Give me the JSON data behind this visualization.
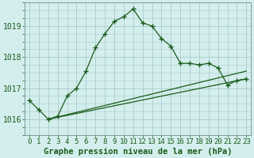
{
  "xlabel": "Graphe pression niveau de la mer (hPa)",
  "bg_color": "#d4eeed",
  "line_color": "#1a5c1a",
  "grid_color": "#a8cccc",
  "axis_color": "#7a9a9a",
  "text_color": "#1a5c1a",
  "ylim": [
    1015.5,
    1019.75
  ],
  "xlim": [
    -0.5,
    23.5
  ],
  "yticks": [
    1016,
    1017,
    1018,
    1019
  ],
  "xticks": [
    0,
    1,
    2,
    3,
    4,
    5,
    6,
    7,
    8,
    9,
    10,
    11,
    12,
    13,
    14,
    15,
    16,
    17,
    18,
    19,
    20,
    21,
    22,
    23
  ],
  "series1_x": [
    0,
    1,
    2,
    3,
    4,
    5,
    6,
    7,
    8,
    9,
    10,
    11,
    12,
    13,
    14,
    15,
    16,
    17,
    18,
    19,
    20,
    21,
    22,
    23
  ],
  "series1_y": [
    1016.6,
    1016.3,
    1016.0,
    1016.1,
    1016.75,
    1017.0,
    1017.55,
    1018.3,
    1018.75,
    1019.15,
    1019.3,
    1019.55,
    1019.1,
    1019.0,
    1018.6,
    1018.35,
    1017.8,
    1017.8,
    1017.75,
    1017.8,
    1017.65,
    1017.1,
    1017.25,
    1017.3
  ],
  "series2_x": [
    2,
    23
  ],
  "series2_y": [
    1016.0,
    1017.55
  ],
  "series3_x": [
    2,
    23
  ],
  "series3_y": [
    1016.0,
    1017.3
  ],
  "xlabel_fontsize": 7.5,
  "tick_fontsize": 6.5,
  "ytick_fontsize": 7
}
